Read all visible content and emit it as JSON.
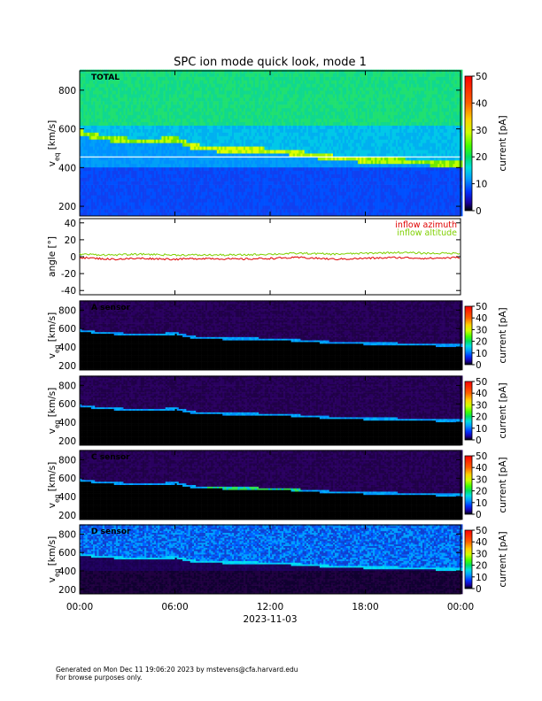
{
  "title": "SPC ion mode quick look, mode 1",
  "footer": {
    "line1": "Generated on Mon Dec 11 19:06:20 2023 by mstevens@cfa.harvard.edu",
    "line2": "For browse purposes only."
  },
  "x_axis": {
    "label": "2023-11-03",
    "ticks": [
      "00:00",
      "06:00",
      "12:00",
      "18:00",
      "00:00"
    ]
  },
  "colorbar": {
    "label": "current [pA]",
    "range": [
      0,
      50
    ],
    "ticks": [
      0,
      10,
      20,
      30,
      40,
      50
    ]
  },
  "chart_data": [
    {
      "type": "heatmap",
      "panel": "TOTAL",
      "label": "TOTAL",
      "ylabel": "v_eq [km/s]",
      "ylim": [
        150,
        900
      ],
      "yticks": [
        200,
        400,
        600,
        800
      ],
      "x_hours": [
        0,
        1,
        2,
        3,
        4,
        5,
        6,
        7,
        8,
        9,
        10,
        11,
        12,
        13,
        14,
        15,
        16,
        17,
        18,
        19,
        20,
        21,
        22,
        23,
        24
      ],
      "peak_speed": [
        580,
        560,
        550,
        540,
        535,
        540,
        550,
        510,
        500,
        495,
        490,
        490,
        485,
        480,
        470,
        460,
        450,
        445,
        440,
        440,
        435,
        430,
        425,
        420,
        420
      ],
      "background_current": "high above 600 km/s (green), low below 400 km/s (blue)"
    },
    {
      "type": "line",
      "panel": "angles",
      "ylabel": "angle [°]",
      "ylim": [
        -45,
        45
      ],
      "yticks": [
        -40,
        -20,
        0,
        20,
        40
      ],
      "x_hours": [
        0,
        2,
        4,
        6,
        8,
        10,
        12,
        14,
        16,
        18,
        20,
        22,
        24
      ],
      "series": [
        {
          "name": "inflow azimuth",
          "color": "#e00000",
          "values": [
            -1,
            -3,
            -2,
            -3,
            -2,
            -3,
            -2,
            -1,
            -3,
            -2,
            -1,
            -2,
            -1
          ]
        },
        {
          "name": "inflow altitude",
          "color": "#7fd000",
          "values": [
            3,
            2,
            3,
            2,
            2,
            2,
            3,
            4,
            3,
            4,
            5,
            4,
            4
          ]
        }
      ]
    },
    {
      "type": "heatmap",
      "panel": "A",
      "label": "A sensor",
      "ylabel": "v_eq [km/s]",
      "ylim": [
        150,
        900
      ],
      "yticks": [
        200,
        400,
        600,
        800
      ]
    },
    {
      "type": "heatmap",
      "panel": "B",
      "label": "",
      "ylabel": "v_eq [km/s]",
      "ylim": [
        150,
        900
      ],
      "yticks": [
        200,
        400,
        600,
        800
      ]
    },
    {
      "type": "heatmap",
      "panel": "C",
      "label": "C sensor",
      "ylabel": "v_eq [km/s]",
      "ylim": [
        150,
        900
      ],
      "yticks": [
        200,
        400,
        600,
        800
      ]
    },
    {
      "type": "heatmap",
      "panel": "D",
      "label": "D sensor",
      "ylabel": "v_eq [km/s]",
      "ylim": [
        150,
        900
      ],
      "yticks": [
        200,
        400,
        600,
        800
      ]
    }
  ]
}
